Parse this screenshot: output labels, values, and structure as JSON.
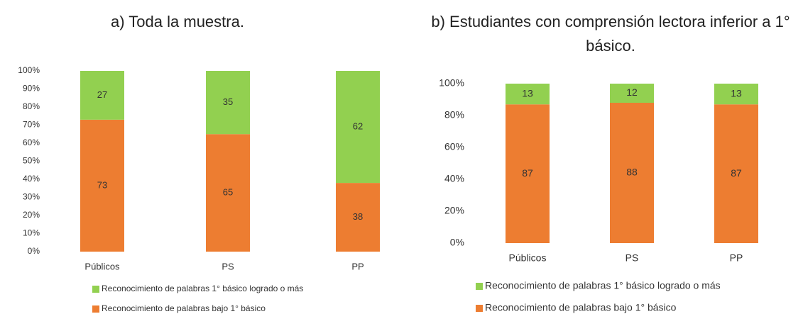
{
  "chart_data": [
    {
      "type": "bar",
      "stacked": true,
      "title": "a) Toda la muestra.",
      "categories": [
        "Públicos",
        "PS",
        "PP"
      ],
      "series": [
        {
          "name": "Reconocimiento de palabras bajo 1° básico",
          "color": "#ed7d31",
          "values": [
            73,
            65,
            38
          ]
        },
        {
          "name": "Reconocimiento de palabras 1° básico logrado o más",
          "color": "#92d050",
          "values": [
            27,
            35,
            62
          ]
        }
      ],
      "ylim": [
        0,
        100
      ],
      "yticks": [
        {
          "value": 0,
          "label": "0%"
        },
        {
          "value": 10,
          "label": "10%"
        },
        {
          "value": 20,
          "label": "20%"
        },
        {
          "value": 30,
          "label": "30%"
        },
        {
          "value": 40,
          "label": "40%"
        },
        {
          "value": 50,
          "label": "50%"
        },
        {
          "value": 60,
          "label": "60%"
        },
        {
          "value": 70,
          "label": "70%"
        },
        {
          "value": 80,
          "label": "80%"
        },
        {
          "value": 90,
          "label": "90%"
        },
        {
          "value": 100,
          "label": "100%"
        }
      ],
      "grid": false,
      "legend": "bottom"
    },
    {
      "type": "bar",
      "stacked": true,
      "title": "b) Estudiantes con comprensión lectora inferior a 1° básico.",
      "categories": [
        "Públicos",
        "PS",
        "PP"
      ],
      "series": [
        {
          "name": "Reconocimiento de palabras bajo 1° básico",
          "color": "#ed7d31",
          "values": [
            87,
            88,
            87
          ]
        },
        {
          "name": "Reconocimiento de palabras 1° básico logrado o más",
          "color": "#92d050",
          "values": [
            13,
            12,
            13
          ]
        }
      ],
      "ylim": [
        0,
        100
      ],
      "yticks": [
        {
          "value": 0,
          "label": "0%"
        },
        {
          "value": 20,
          "label": "20%"
        },
        {
          "value": 40,
          "label": "40%"
        },
        {
          "value": 60,
          "label": "60%"
        },
        {
          "value": 80,
          "label": "80%"
        },
        {
          "value": 100,
          "label": "100%"
        }
      ],
      "grid": false,
      "legend": "bottom"
    }
  ]
}
